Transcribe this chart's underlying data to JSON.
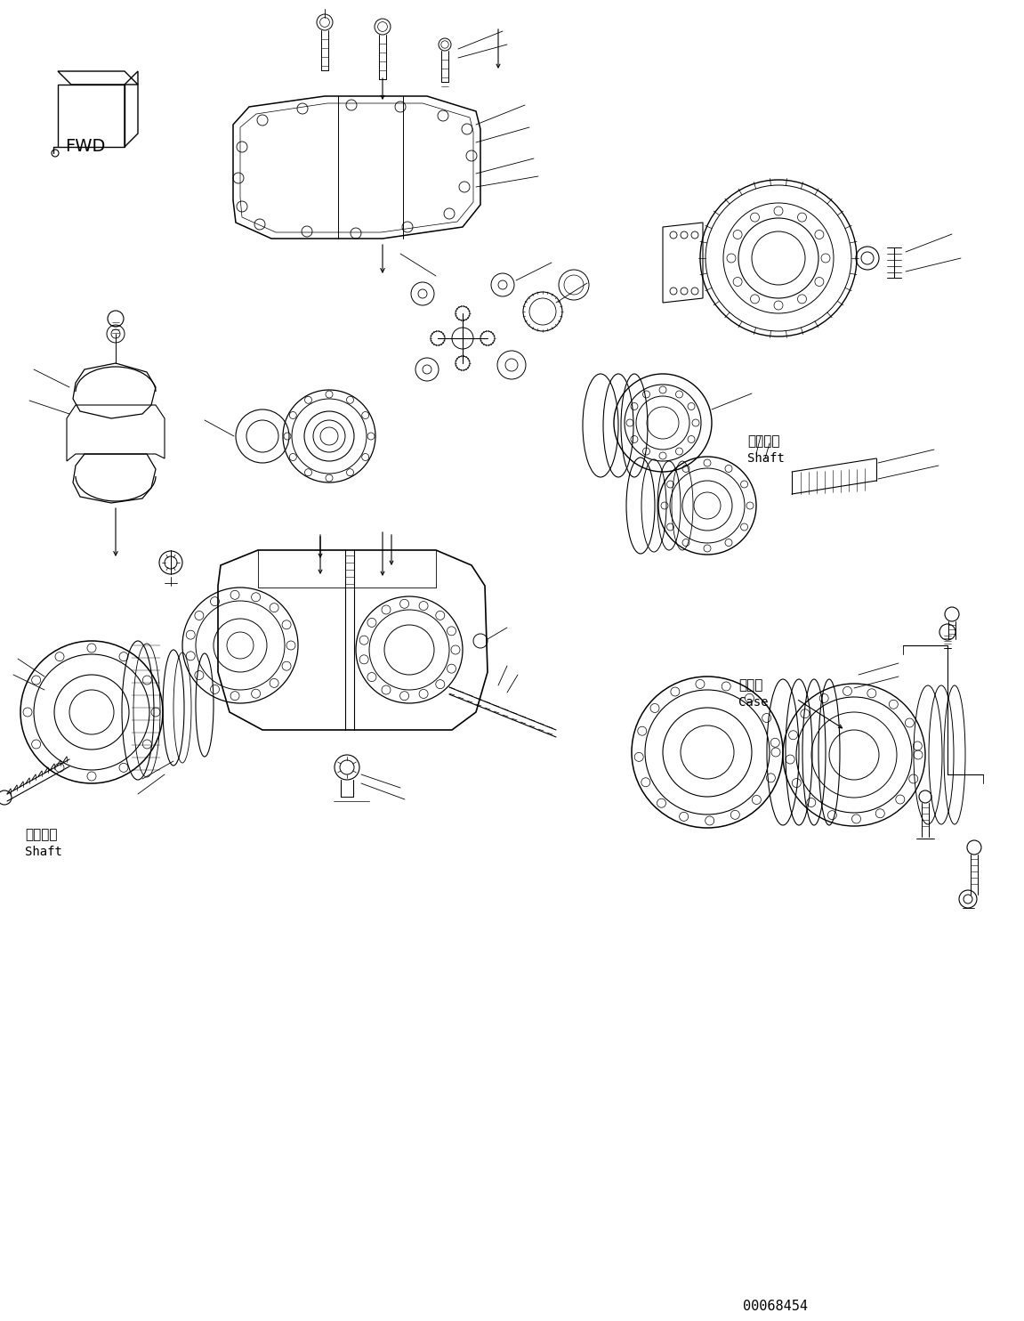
{
  "background_color": "#ffffff",
  "line_color": "#000000",
  "part_number": "00068454",
  "labels": {
    "shaft_jp_top_right": "シャフト",
    "shaft_en_top_right": "Shaft",
    "shaft_jp_bot_left": "シャフト",
    "shaft_en_bot_left": "Shaft",
    "case_jp": "ケース",
    "case_en": "Case"
  },
  "figsize": [
    11.51,
    14.84
  ],
  "dpi": 100
}
